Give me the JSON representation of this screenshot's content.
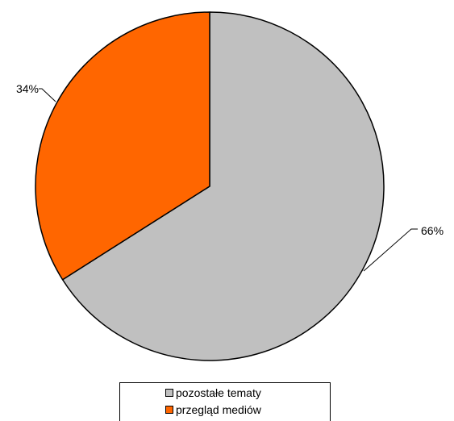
{
  "chart_data": {
    "type": "pie",
    "title": "",
    "slices": [
      {
        "name": "pozostałe tematy",
        "value": 66,
        "label": "66%",
        "color": "#c0c0c0"
      },
      {
        "name": "przegląd mediów",
        "value": 34,
        "label": "34%",
        "color": "#ff6600"
      }
    ],
    "start_angle_deg": 0,
    "direction": "clockwise",
    "legend": {
      "position": "bottom",
      "items": [
        "pozostałe tematy",
        "przegląd mediów"
      ]
    }
  }
}
